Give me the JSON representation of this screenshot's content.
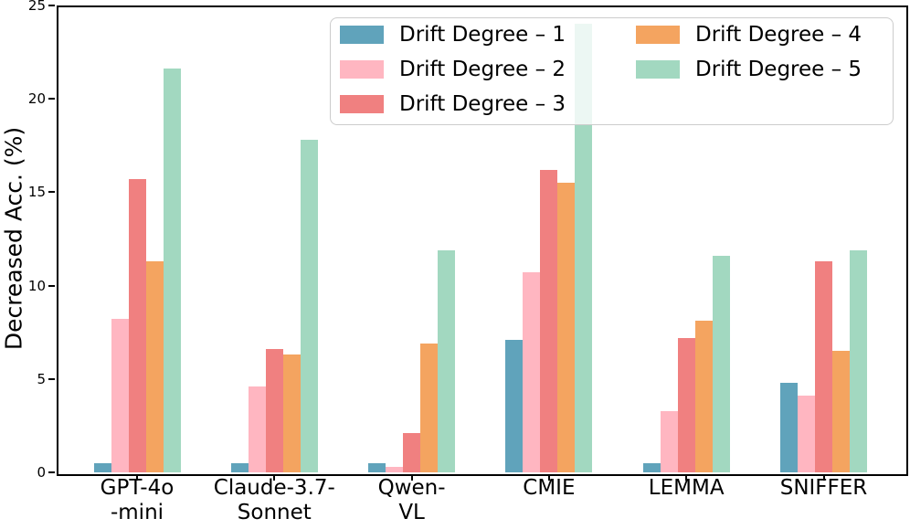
{
  "chart_data": {
    "type": "bar",
    "title": "",
    "xlabel": "",
    "ylabel": "Decreased Acc. (%)",
    "ylim": [
      0,
      25
    ],
    "yticks": [
      0,
      5,
      10,
      15,
      20,
      25
    ],
    "grid": false,
    "legend_position": "upper center, 2 columns, semi-transparent box",
    "categories": [
      "GPT-4o\n-mini",
      "Claude-3.7-\nSonnet",
      "Qwen-\nVL",
      "CMIE",
      "LEMMA",
      "SNIFFER"
    ],
    "series": [
      {
        "name": "Drift Degree – 1",
        "color": "#60A3BB",
        "values": [
          0.5,
          0.5,
          0.5,
          7.1,
          0.5,
          4.8
        ]
      },
      {
        "name": "Drift Degree – 2",
        "color": "#FFB6C1",
        "values": [
          8.2,
          4.6,
          0.3,
          10.7,
          3.3,
          4.1
        ]
      },
      {
        "name": "Drift Degree – 3",
        "color": "#F08080",
        "values": [
          15.7,
          6.6,
          2.1,
          16.2,
          7.2,
          11.3
        ]
      },
      {
        "name": "Drift Degree – 4",
        "color": "#F4A460",
        "values": [
          11.3,
          6.3,
          6.9,
          15.5,
          8.1,
          6.5
        ]
      },
      {
        "name": "Drift Degree – 5",
        "color": "#A2D8C0",
        "values": [
          21.6,
          17.8,
          11.9,
          24.0,
          11.6,
          11.9
        ]
      }
    ],
    "spine_color": "#000000",
    "background_color": "#ffffff"
  }
}
